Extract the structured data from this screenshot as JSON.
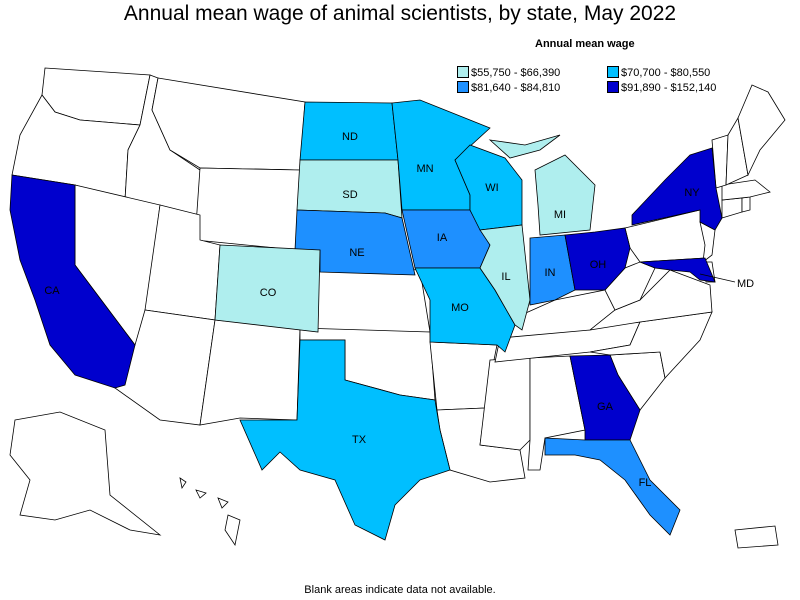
{
  "title": "Annual mean wage of animal scientists, by state, May 2022",
  "legend": {
    "title": "Annual mean wage",
    "items": [
      {
        "label": "$55,750 - $66,390",
        "color": "#afeeee"
      },
      {
        "label": "$70,700 - $80,550",
        "color": "#00bfff"
      },
      {
        "label": "$81,640 - $84,810",
        "color": "#1e90ff"
      },
      {
        "label": "$91,890 - $152,140",
        "color": "#0000cd"
      }
    ]
  },
  "states": {
    "CA": {
      "label": "CA",
      "bin": 3
    },
    "NY": {
      "label": "NY",
      "bin": 3
    },
    "OH": {
      "label": "OH",
      "bin": 3
    },
    "GA": {
      "label": "GA",
      "bin": 3
    },
    "MD": {
      "label": "MD",
      "bin": 3
    },
    "NE": {
      "label": "NE",
      "bin": 2
    },
    "IA": {
      "label": "IA",
      "bin": 2
    },
    "IN": {
      "label": "IN",
      "bin": 2
    },
    "FL": {
      "label": "FL",
      "bin": 2
    },
    "ND": {
      "label": "ND",
      "bin": 1
    },
    "MN": {
      "label": "MN",
      "bin": 1
    },
    "WI": {
      "label": "WI",
      "bin": 1
    },
    "MO": {
      "label": "MO",
      "bin": 1
    },
    "TX": {
      "label": "TX",
      "bin": 1
    },
    "SD": {
      "label": "SD",
      "bin": 0
    },
    "CO": {
      "label": "CO",
      "bin": 0
    },
    "IL": {
      "label": "IL",
      "bin": 0
    },
    "MI": {
      "label": "MI",
      "bin": 0
    }
  },
  "footnote": "Blank areas indicate data not available."
}
